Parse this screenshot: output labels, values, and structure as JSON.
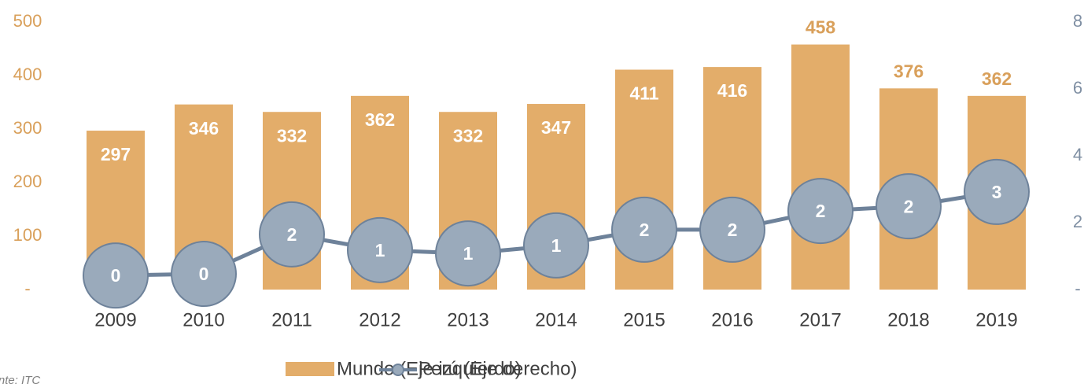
{
  "chart_data": {
    "type": "bar_line",
    "categories": [
      "2009",
      "2010",
      "2011",
      "2012",
      "2013",
      "2014",
      "2015",
      "2016",
      "2017",
      "2018",
      "2019"
    ],
    "series": [
      {
        "name": "Mundo (Eje izquierdo)",
        "color": "#e3ad6a",
        "type": "bar",
        "values": [
          297,
          346,
          332,
          362,
          332,
          347,
          411,
          416,
          458,
          376,
          362
        ]
      },
      {
        "name": "Perú (Eje derecho)",
        "color": "#6e829a",
        "type": "line",
        "axis": "y2",
        "values": [
          0.42,
          0.47,
          1.65,
          1.18,
          1.08,
          1.32,
          1.79,
          1.79,
          2.35,
          2.49,
          2.92
        ],
        "value_labels": [
          "0",
          "0",
          "2",
          "1",
          "1",
          "1",
          "2",
          "2",
          "2",
          "2",
          "3"
        ]
      }
    ],
    "ylim": [
      0,
      500
    ],
    "yticks": [
      {
        "value": 0,
        "label": "-"
      },
      100,
      200,
      300,
      400,
      500
    ],
    "y2lim": [
      0,
      8
    ],
    "y2ticks": [
      {
        "value": 0,
        "label": "-"
      },
      2,
      4,
      6,
      8
    ],
    "source": "Fuente: ITC"
  }
}
